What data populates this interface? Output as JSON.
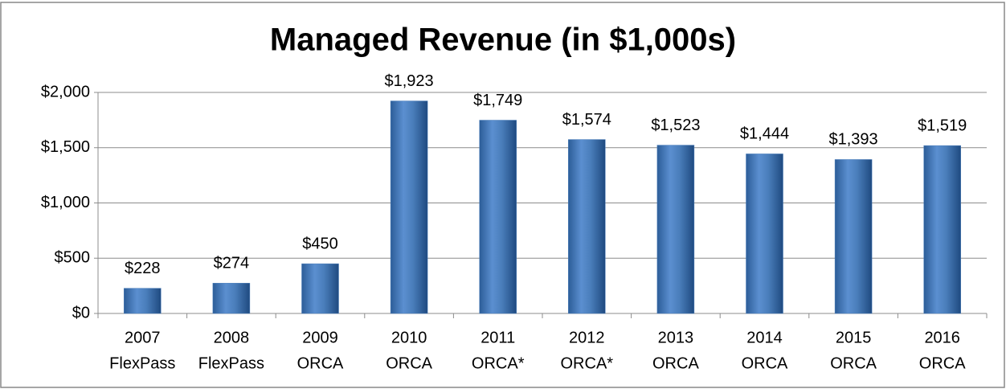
{
  "chart_data": {
    "type": "bar",
    "title": "Managed Revenue (in $1,000s)",
    "categories": [
      [
        "2007",
        "FlexPass"
      ],
      [
        "2008",
        "FlexPass"
      ],
      [
        "2009",
        "ORCA"
      ],
      [
        "2010",
        "ORCA"
      ],
      [
        "2011",
        "ORCA*"
      ],
      [
        "2012",
        "ORCA*"
      ],
      [
        "2013",
        "ORCA"
      ],
      [
        "2014",
        "ORCA"
      ],
      [
        "2015",
        "ORCA"
      ],
      [
        "2016",
        "ORCA"
      ]
    ],
    "values": [
      228,
      274,
      450,
      1923,
      1749,
      1574,
      1523,
      1444,
      1393,
      1519
    ],
    "value_labels": [
      "$228",
      "$274",
      "$450",
      "$1,923",
      "$1,749",
      "$1,574",
      "$1,523",
      "$1,444",
      "$1,393",
      "$1,519"
    ],
    "color": "#4a7ebb",
    "ylim": [
      0,
      2000
    ],
    "yticks": [
      {
        "value": 0,
        "label": "$0"
      },
      {
        "value": 500,
        "label": "$500"
      },
      {
        "value": 1000,
        "label": "$1,000"
      },
      {
        "value": 1500,
        "label": "$1,500"
      },
      {
        "value": 2000,
        "label": "$2,000"
      }
    ],
    "grid": true
  }
}
